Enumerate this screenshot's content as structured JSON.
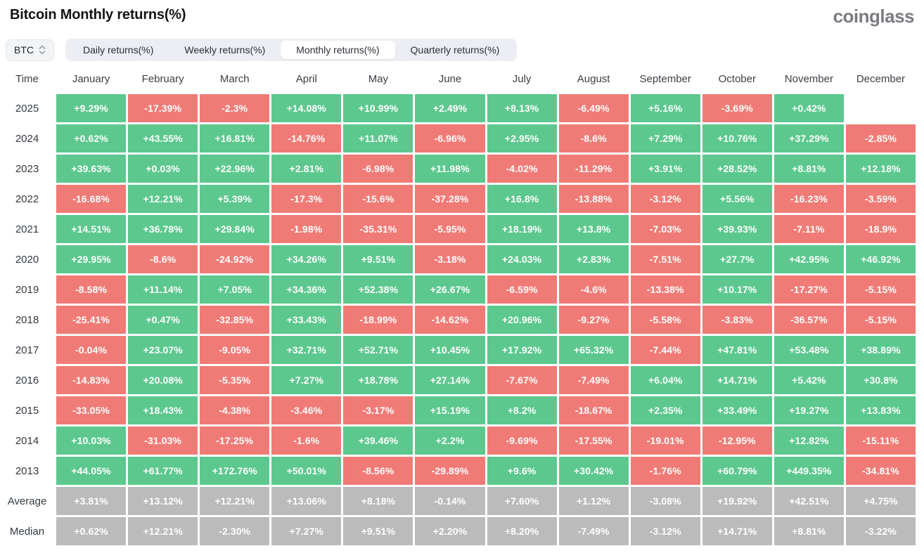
{
  "header": {
    "title": "Bitcoin Monthly returns(%)",
    "logo": "coinglass"
  },
  "controls": {
    "symbol": "BTC",
    "tabs": [
      {
        "label": "Daily returns(%)",
        "active": false
      },
      {
        "label": "Weekly returns(%)",
        "active": false
      },
      {
        "label": "Monthly returns(%)",
        "active": true
      },
      {
        "label": "Quarterly returns(%)",
        "active": false
      }
    ]
  },
  "colors": {
    "positive": "#5cc88e",
    "negative": "#f07b76",
    "neutral": "#bbbbbb"
  },
  "table": {
    "header": [
      "Time",
      "January",
      "February",
      "March",
      "April",
      "May",
      "June",
      "July",
      "August",
      "September",
      "October",
      "November",
      "December"
    ],
    "rows": [
      {
        "label": "2025",
        "values": [
          "+9.29%",
          "-17.39%",
          "-2.3%",
          "+14.08%",
          "+10.99%",
          "+2.49%",
          "+8.13%",
          "-6.49%",
          "+5.16%",
          "-3.69%",
          "+0.42%",
          ""
        ],
        "colors": [
          "g",
          "r",
          "r",
          "g",
          "g",
          "g",
          "g",
          "r",
          "g",
          "r",
          "g",
          ""
        ]
      },
      {
        "label": "2024",
        "values": [
          "+0.62%",
          "+43.55%",
          "+16.81%",
          "-14.76%",
          "+11.07%",
          "-6.96%",
          "+2.95%",
          "-8.6%",
          "+7.29%",
          "+10.76%",
          "+37.29%",
          "-2.85%"
        ],
        "colors": [
          "g",
          "g",
          "g",
          "r",
          "g",
          "r",
          "g",
          "r",
          "g",
          "g",
          "g",
          "r"
        ]
      },
      {
        "label": "2023",
        "values": [
          "+39.63%",
          "+0.03%",
          "+22.96%",
          "+2.81%",
          "-6.98%",
          "+11.98%",
          "-4.02%",
          "-11.29%",
          "+3.91%",
          "+28.52%",
          "+8.81%",
          "+12.18%"
        ],
        "colors": [
          "g",
          "g",
          "g",
          "g",
          "r",
          "g",
          "r",
          "r",
          "g",
          "g",
          "g",
          "g"
        ]
      },
      {
        "label": "2022",
        "values": [
          "-16.68%",
          "+12.21%",
          "+5.39%",
          "-17.3%",
          "-15.6%",
          "-37.28%",
          "+16.8%",
          "-13.88%",
          "-3.12%",
          "+5.56%",
          "-16.23%",
          "-3.59%"
        ],
        "colors": [
          "r",
          "g",
          "g",
          "r",
          "r",
          "r",
          "g",
          "r",
          "r",
          "g",
          "r",
          "r"
        ]
      },
      {
        "label": "2021",
        "values": [
          "+14.51%",
          "+36.78%",
          "+29.84%",
          "-1.98%",
          "-35.31%",
          "-5.95%",
          "+18.19%",
          "+13.8%",
          "-7.03%",
          "+39.93%",
          "-7.11%",
          "-18.9%"
        ],
        "colors": [
          "g",
          "g",
          "g",
          "r",
          "r",
          "r",
          "g",
          "g",
          "r",
          "g",
          "r",
          "r"
        ]
      },
      {
        "label": "2020",
        "values": [
          "+29.95%",
          "-8.6%",
          "-24.92%",
          "+34.26%",
          "+9.51%",
          "-3.18%",
          "+24.03%",
          "+2.83%",
          "-7.51%",
          "+27.7%",
          "+42.95%",
          "+46.92%"
        ],
        "colors": [
          "g",
          "r",
          "r",
          "g",
          "g",
          "r",
          "g",
          "g",
          "r",
          "g",
          "g",
          "g"
        ]
      },
      {
        "label": "2019",
        "values": [
          "-8.58%",
          "+11.14%",
          "+7.05%",
          "+34.36%",
          "+52.38%",
          "+26.67%",
          "-6.59%",
          "-4.6%",
          "-13.38%",
          "+10.17%",
          "-17.27%",
          "-5.15%"
        ],
        "colors": [
          "r",
          "g",
          "g",
          "g",
          "g",
          "g",
          "r",
          "r",
          "r",
          "g",
          "r",
          "r"
        ]
      },
      {
        "label": "2018",
        "values": [
          "-25.41%",
          "+0.47%",
          "-32.85%",
          "+33.43%",
          "-18.99%",
          "-14.62%",
          "+20.96%",
          "-9.27%",
          "-5.58%",
          "-3.83%",
          "-36.57%",
          "-5.15%"
        ],
        "colors": [
          "r",
          "g",
          "r",
          "g",
          "r",
          "r",
          "g",
          "r",
          "r",
          "r",
          "r",
          "r"
        ]
      },
      {
        "label": "2017",
        "values": [
          "-0.04%",
          "+23.07%",
          "-9.05%",
          "+32.71%",
          "+52.71%",
          "+10.45%",
          "+17.92%",
          "+65.32%",
          "-7.44%",
          "+47.81%",
          "+53.48%",
          "+38.89%"
        ],
        "colors": [
          "r",
          "g",
          "r",
          "g",
          "g",
          "g",
          "g",
          "g",
          "r",
          "g",
          "g",
          "g"
        ]
      },
      {
        "label": "2016",
        "values": [
          "-14.83%",
          "+20.08%",
          "-5.35%",
          "+7.27%",
          "+18.78%",
          "+27.14%",
          "-7.67%",
          "-7.49%",
          "+6.04%",
          "+14.71%",
          "+5.42%",
          "+30.8%"
        ],
        "colors": [
          "r",
          "g",
          "r",
          "g",
          "g",
          "g",
          "r",
          "r",
          "g",
          "g",
          "g",
          "g"
        ]
      },
      {
        "label": "2015",
        "values": [
          "-33.05%",
          "+18.43%",
          "-4.38%",
          "-3.46%",
          "-3.17%",
          "+15.19%",
          "+8.2%",
          "-18.67%",
          "+2.35%",
          "+33.49%",
          "+19.27%",
          "+13.83%"
        ],
        "colors": [
          "r",
          "g",
          "r",
          "r",
          "r",
          "g",
          "g",
          "r",
          "g",
          "g",
          "g",
          "g"
        ]
      },
      {
        "label": "2014",
        "values": [
          "+10.03%",
          "-31.03%",
          "-17.25%",
          "-1.6%",
          "+39.46%",
          "+2.2%",
          "-9.69%",
          "-17.55%",
          "-19.01%",
          "-12.95%",
          "+12.82%",
          "-15.11%"
        ],
        "colors": [
          "g",
          "r",
          "r",
          "r",
          "g",
          "g",
          "r",
          "r",
          "r",
          "r",
          "g",
          "r"
        ]
      },
      {
        "label": "2013",
        "values": [
          "+44.05%",
          "+61.77%",
          "+172.76%",
          "+50.01%",
          "-8.56%",
          "-29.89%",
          "+9.6%",
          "+30.42%",
          "-1.76%",
          "+60.79%",
          "+449.35%",
          "-34.81%"
        ],
        "colors": [
          "g",
          "g",
          "g",
          "g",
          "r",
          "r",
          "g",
          "g",
          "r",
          "g",
          "g",
          "r"
        ]
      },
      {
        "label": "Average",
        "values": [
          "+3.81%",
          "+13.12%",
          "+12.21%",
          "+13.06%",
          "+8.18%",
          "-0.14%",
          "+7.60%",
          "+1.12%",
          "-3.08%",
          "+19.92%",
          "+42.51%",
          "+4.75%"
        ],
        "colors": [
          "n",
          "n",
          "n",
          "n",
          "n",
          "n",
          "n",
          "n",
          "n",
          "n",
          "n",
          "n"
        ]
      },
      {
        "label": "Median",
        "values": [
          "+0.62%",
          "+12.21%",
          "-2.30%",
          "+7.27%",
          "+9.51%",
          "+2.20%",
          "+8.20%",
          "-7.49%",
          "-3.12%",
          "+14.71%",
          "+8.81%",
          "-3.22%"
        ],
        "colors": [
          "n",
          "n",
          "n",
          "n",
          "n",
          "n",
          "n",
          "n",
          "n",
          "n",
          "n",
          "n"
        ]
      }
    ]
  }
}
